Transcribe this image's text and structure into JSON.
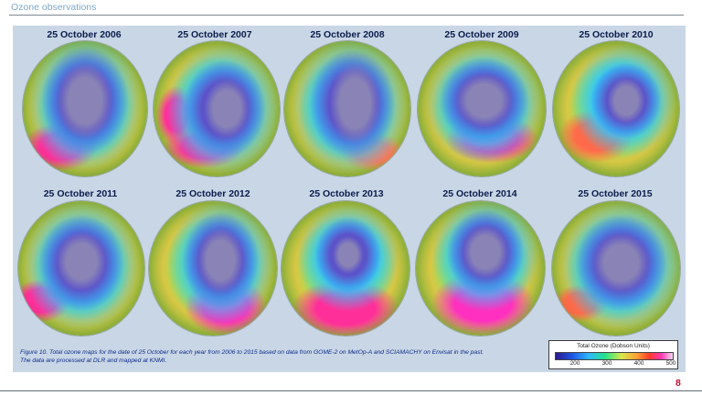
{
  "header": {
    "title": "Ozone observations"
  },
  "maps": [
    {
      "label": "25 October 2006"
    },
    {
      "label": "25 October 2007"
    },
    {
      "label": "25 October 2008"
    },
    {
      "label": "25 October 2009"
    },
    {
      "label": "25 October 2010"
    },
    {
      "label": "25 October 2011"
    },
    {
      "label": "25 October 2012"
    },
    {
      "label": "25 October 2013"
    },
    {
      "label": "25 October 2014"
    },
    {
      "label": "25 October 2015"
    }
  ],
  "caption": "Figure 10. Total ozone maps for the date of 25 October for each year from 2006 to 2015 based on data from GOME-2 on MetOp-A and SCIAMACHY on Envisat in the past. The data are processed at DLR and mapped at KNMI.",
  "legend": {
    "title": "Total Ozone (Dobson Units)",
    "ticks": [
      "200",
      "300",
      "400",
      "500"
    ]
  },
  "page_number": "8",
  "colors": {
    "panel": "#c9d6e6",
    "label_text": "#0c1c4c",
    "caption_text": "#0c2b8a",
    "page_number": "#c8102e"
  }
}
